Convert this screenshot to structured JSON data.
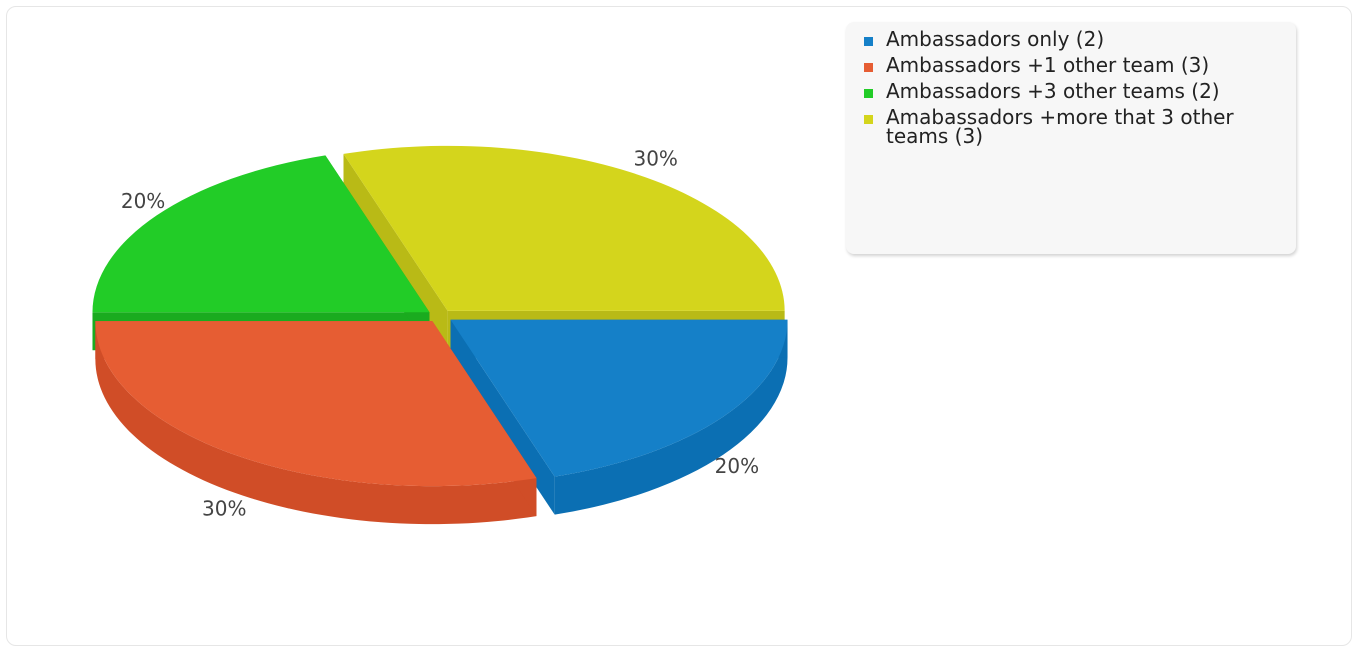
{
  "chart_data": {
    "type": "pie",
    "style": "3d-exploded",
    "title": "",
    "slices": [
      {
        "label": "Ambassadors only (2)",
        "value": 2,
        "percent_label": "20%",
        "color": "#1580c8",
        "side_color": "#0b6fb3"
      },
      {
        "label": "Ambassadors +1 other team (3)",
        "value": 3,
        "percent_label": "30%",
        "color": "#e65d33",
        "side_color": "#d04d27"
      },
      {
        "label": "Ambassadors +3 other teams (2)",
        "value": 2,
        "percent_label": "20%",
        "color": "#22cc27",
        "side_color": "#1aab1f"
      },
      {
        "label": "Amabassadors +more that 3 other teams (3)",
        "value": 3,
        "percent_label": "30%",
        "color": "#d4d51c",
        "side_color": "#b9ba16"
      }
    ],
    "legend_position": "top-right"
  }
}
